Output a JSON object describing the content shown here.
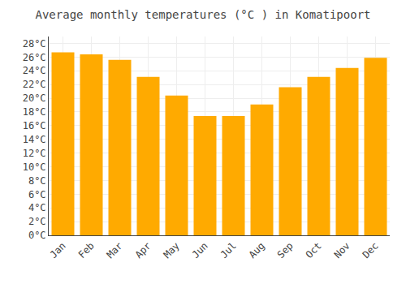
{
  "chart_data": {
    "type": "bar",
    "title": "Average monthly temperatures (°C ) in Komatipoort",
    "categories": [
      "Jan",
      "Feb",
      "Mar",
      "Apr",
      "May",
      "Jun",
      "Jul",
      "Aug",
      "Sep",
      "Oct",
      "Nov",
      "Dec"
    ],
    "values": [
      26.7,
      26.4,
      25.6,
      23.1,
      20.4,
      17.4,
      17.4,
      19.1,
      21.6,
      23.1,
      24.4,
      25.9
    ],
    "color": "#FFAA00",
    "ylim": [
      0,
      29
    ],
    "yticks": [
      {
        "value": 0,
        "label": "0°C"
      },
      {
        "value": 2,
        "label": "2°C"
      },
      {
        "value": 4,
        "label": "4°C"
      },
      {
        "value": 6,
        "label": "6°C"
      },
      {
        "value": 8,
        "label": "8°C"
      },
      {
        "value": 10,
        "label": "10°C"
      },
      {
        "value": 12,
        "label": "12°C"
      },
      {
        "value": 14,
        "label": "14°C"
      },
      {
        "value": 16,
        "label": "16°C"
      },
      {
        "value": 18,
        "label": "18°C"
      },
      {
        "value": 20,
        "label": "20°C"
      },
      {
        "value": 22,
        "label": "22°C"
      },
      {
        "value": 24,
        "label": "24°C"
      },
      {
        "value": 26,
        "label": "26°C"
      },
      {
        "value": 28,
        "label": "28°C"
      }
    ],
    "grid": true
  }
}
